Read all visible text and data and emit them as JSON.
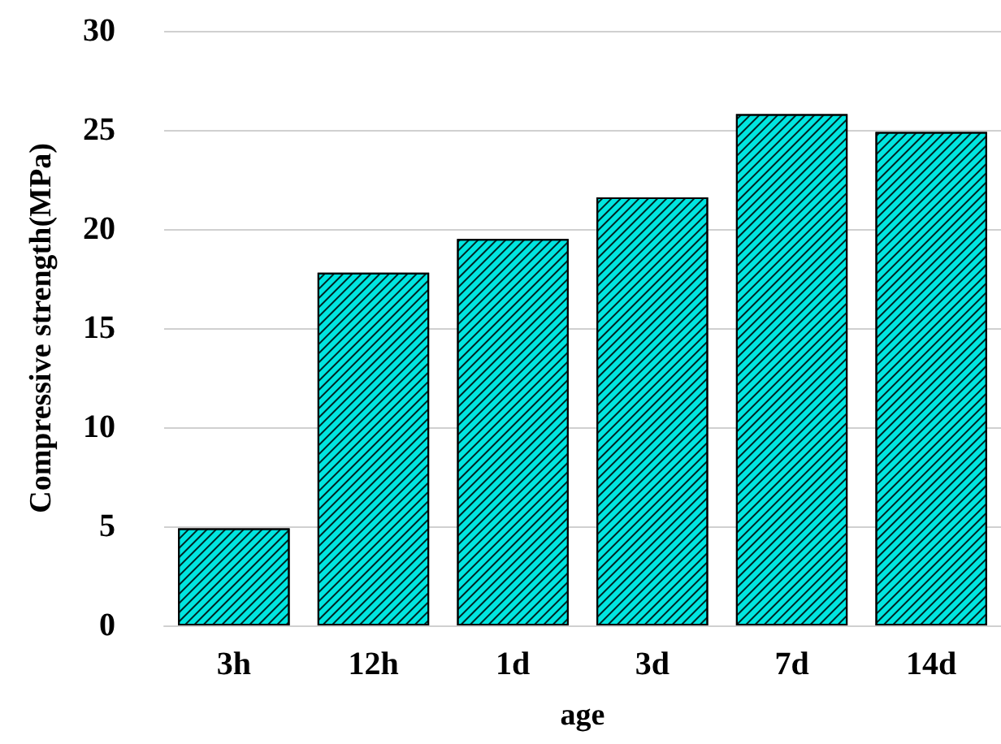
{
  "chart_data": {
    "type": "bar",
    "xlabel": "age",
    "ylabel": "Compressive strength(MPa)",
    "categories": [
      "3h",
      "12h",
      "1d",
      "3d",
      "7d",
      "14d"
    ],
    "values": [
      4.9,
      17.8,
      19.5,
      21.6,
      25.8,
      24.9
    ],
    "color": "#00e5e0",
    "ylim": [
      0,
      30
    ],
    "yticks": [
      0,
      5,
      10,
      15,
      20,
      25,
      30
    ],
    "grid": "y"
  }
}
